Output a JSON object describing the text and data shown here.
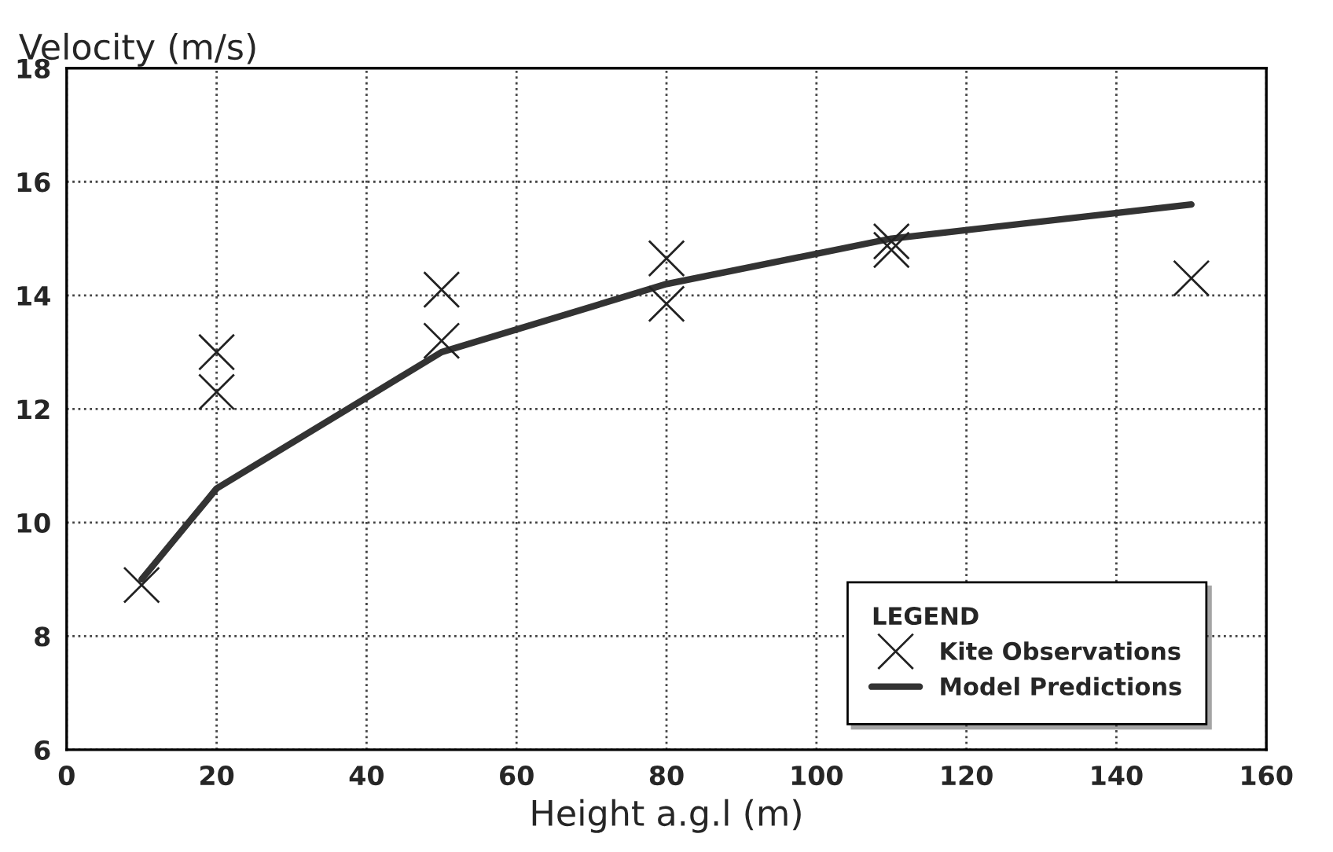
{
  "chart_data": {
    "type": "scatter",
    "ylabel": "Velocity (m/s)",
    "xlabel": "Height a.g.l (m)",
    "legend_title": "LEGEND",
    "legend": "bottom right",
    "grid": true,
    "xlim": [
      0,
      160
    ],
    "ylim": [
      6,
      18
    ],
    "xticks": [
      0,
      20,
      40,
      60,
      80,
      100,
      120,
      140,
      160
    ],
    "yticks": [
      6,
      8,
      10,
      12,
      14,
      16,
      18
    ],
    "series": [
      {
        "name": "Kite Observations",
        "marker": "cross",
        "color": "#222222",
        "x": [
          10,
          20,
          20,
          50,
          50,
          80,
          80,
          110,
          110,
          150
        ],
        "values": [
          8.9,
          13.0,
          12.3,
          14.1,
          13.2,
          14.65,
          13.85,
          14.95,
          14.8,
          14.3
        ]
      },
      {
        "name": "Model Predictions",
        "type": "line",
        "marker": "none",
        "color": "#333333",
        "x": [
          10,
          20,
          50,
          80,
          110,
          150
        ],
        "values": [
          9.0,
          10.6,
          13.0,
          14.2,
          15.0,
          15.6
        ]
      }
    ]
  }
}
